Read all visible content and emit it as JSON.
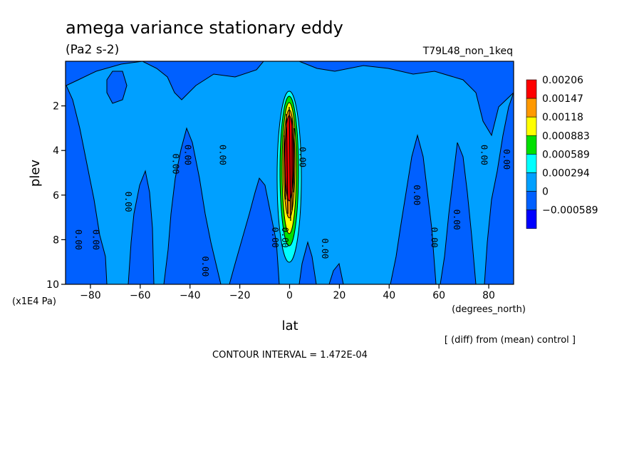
{
  "chart_data": {
    "type": "heatmap",
    "title": "amega variance stationary eddy",
    "units": "(Pa2 s-2)",
    "experiment": "T79L48_non_1keq",
    "xlabel": "lat",
    "x_units": "(degrees_north)",
    "ylabel": "plev",
    "y_units": "(x1E4 Pa)",
    "xlim": [
      -90,
      90
    ],
    "ylim": [
      10,
      0
    ],
    "x_ticks": [
      -80,
      -60,
      -40,
      -20,
      0,
      20,
      40,
      60,
      80
    ],
    "y_ticks": [
      2,
      4,
      6,
      8,
      10
    ],
    "x_tick_labels": [
      "−80",
      "−60",
      "−40",
      "−20",
      "0",
      "20",
      "40",
      "60",
      "80"
    ],
    "y_tick_labels": [
      "2",
      "4",
      "6",
      "8",
      "10"
    ],
    "levels": [
      "0.00206",
      "0.00147",
      "0.00118",
      "0.000883",
      "0.000589",
      "0.000294",
      "0",
      "−0.000589"
    ],
    "level_colors": [
      "#ff0000",
      "#ff9900",
      "#ffff00",
      "#00e000",
      "#00ffff",
      "#00a0ff",
      "#0060ff",
      "#0000ff"
    ],
    "contour_labels": [
      {
        "lat": -86,
        "plev": 8.0,
        "text": "0.00"
      },
      {
        "lat": -79,
        "plev": 8.0,
        "text": "0.00"
      },
      {
        "lat": -66,
        "plev": 6.3,
        "text": "0.00"
      },
      {
        "lat": -47,
        "plev": 4.6,
        "text": "0.00"
      },
      {
        "lat": -42,
        "plev": 4.2,
        "text": "0.00"
      },
      {
        "lat": -28,
        "plev": 4.2,
        "text": "0.00"
      },
      {
        "lat": -35,
        "plev": 9.2,
        "text": "0.00"
      },
      {
        "lat": -7,
        "plev": 7.9,
        "text": "0.00"
      },
      {
        "lat": -3,
        "plev": 7.9,
        "text": "0.00"
      },
      {
        "lat": 4,
        "plev": 4.3,
        "text": "0.00"
      },
      {
        "lat": 13,
        "plev": 8.4,
        "text": "0.00"
      },
      {
        "lat": 50,
        "plev": 6.0,
        "text": "0.00"
      },
      {
        "lat": 57,
        "plev": 7.9,
        "text": "0.00"
      },
      {
        "lat": 66,
        "plev": 7.1,
        "text": "0.00"
      },
      {
        "lat": 77,
        "plev": 4.2,
        "text": "0.00"
      },
      {
        "lat": 86,
        "plev": 4.4,
        "text": "0.00"
      }
    ],
    "grid": false,
    "legend": "right"
  },
  "footer": {
    "note": "[ (diff) from (mean) control ]",
    "contour_interval": "CONTOUR INTERVAL = 1.472E-04"
  }
}
